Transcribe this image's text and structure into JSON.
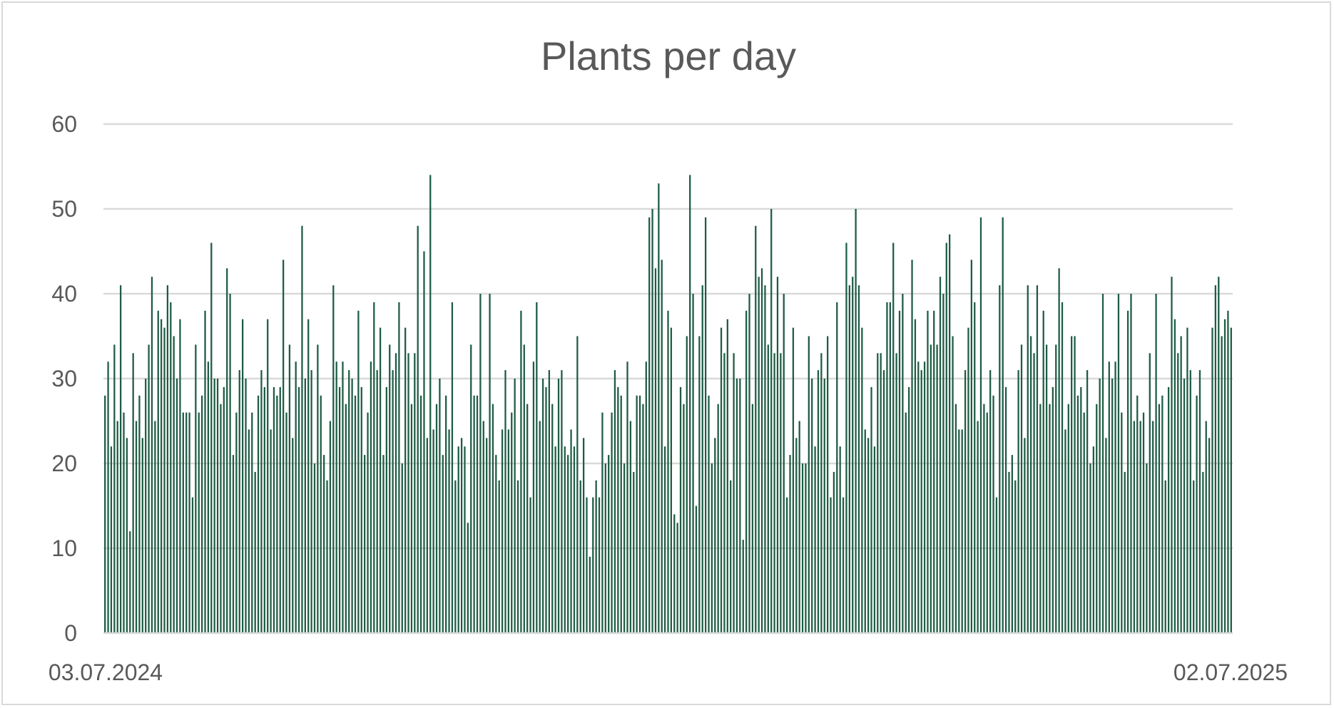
{
  "chart_data": {
    "type": "bar",
    "title": "Plants per day",
    "x_start": "03.07.2024",
    "x_end": "02.07.2025",
    "x_tick_labels": [
      "03.07.2024",
      "02.07.2025"
    ],
    "ylim": [
      0,
      60
    ],
    "y_ticks": [
      0,
      10,
      20,
      30,
      40,
      50,
      60
    ],
    "y_tick_labels": [
      "0",
      "10",
      "20",
      "30",
      "40",
      "50",
      "60"
    ],
    "grid": true,
    "legend": "none",
    "bar_color": "#1f5c45",
    "values": [
      28,
      32,
      22,
      34,
      25,
      41,
      26,
      23,
      12,
      33,
      25,
      28,
      23,
      30,
      34,
      42,
      25,
      38,
      37,
      36,
      41,
      39,
      35,
      30,
      37,
      26,
      26,
      26,
      16,
      34,
      26,
      28,
      38,
      32,
      46,
      30,
      30,
      27,
      29,
      43,
      40,
      21,
      26,
      31,
      37,
      30,
      24,
      26,
      19,
      28,
      31,
      29,
      37,
      24,
      29,
      28,
      29,
      44,
      26,
      34,
      23,
      32,
      29,
      48,
      30,
      37,
      31,
      20,
      34,
      28,
      21,
      18,
      25,
      41,
      32,
      29,
      32,
      27,
      31,
      30,
      28,
      38,
      29,
      21,
      26,
      32,
      39,
      31,
      36,
      21,
      29,
      34,
      31,
      33,
      39,
      20,
      36,
      33,
      27,
      33,
      48,
      28,
      45,
      23,
      54,
      24,
      27,
      30,
      21,
      28,
      24,
      39,
      18,
      22,
      23,
      22,
      13,
      34,
      28,
      28,
      40,
      25,
      23,
      40,
      27,
      21,
      18,
      24,
      31,
      24,
      26,
      30,
      18,
      38,
      34,
      27,
      16,
      32,
      39,
      25,
      30,
      29,
      31,
      27,
      22,
      30,
      31,
      22,
      21,
      24,
      22,
      35,
      18,
      23,
      16,
      9,
      16,
      18,
      16,
      26,
      20,
      21,
      26,
      31,
      29,
      28,
      20,
      32,
      25,
      19,
      28,
      28,
      27,
      32,
      49,
      50,
      43,
      53,
      44,
      22,
      38,
      36,
      14,
      13,
      29,
      27,
      35,
      54,
      40,
      15,
      35,
      41,
      49,
      28,
      20,
      23,
      27,
      36,
      33,
      37,
      18,
      33,
      30,
      30,
      11,
      38,
      40,
      27,
      48,
      42,
      43,
      41,
      34,
      50,
      33,
      42,
      33,
      40,
      16,
      21,
      36,
      23,
      25,
      20,
      20,
      35,
      30,
      22,
      31,
      33,
      30,
      35,
      16,
      19,
      39,
      22,
      16,
      46,
      41,
      42,
      50,
      41,
      36,
      24,
      23,
      29,
      22,
      33,
      33,
      31,
      39,
      39,
      46,
      33,
      38,
      40,
      26,
      29,
      44,
      37,
      32,
      31,
      32,
      38,
      34,
      38,
      34,
      42,
      40,
      46,
      47,
      35,
      27,
      24,
      24,
      31,
      36,
      44,
      39,
      25,
      49,
      27,
      26,
      31,
      28,
      16,
      41,
      49,
      29,
      19,
      21,
      18,
      31,
      34,
      23,
      41,
      35,
      33,
      41,
      27,
      38,
      34,
      27,
      29,
      34,
      43,
      39,
      24,
      27,
      35,
      35,
      28,
      29,
      26,
      31,
      20,
      22,
      27,
      30,
      40,
      23,
      32,
      30,
      32,
      40,
      26,
      19,
      38,
      40,
      25,
      28,
      25,
      26,
      20,
      33,
      25,
      40,
      27,
      28,
      18,
      29,
      42,
      37,
      33,
      35,
      30,
      36,
      31,
      18,
      28,
      31,
      19,
      25,
      23,
      36,
      41,
      42,
      35,
      37,
      38,
      36
    ]
  }
}
